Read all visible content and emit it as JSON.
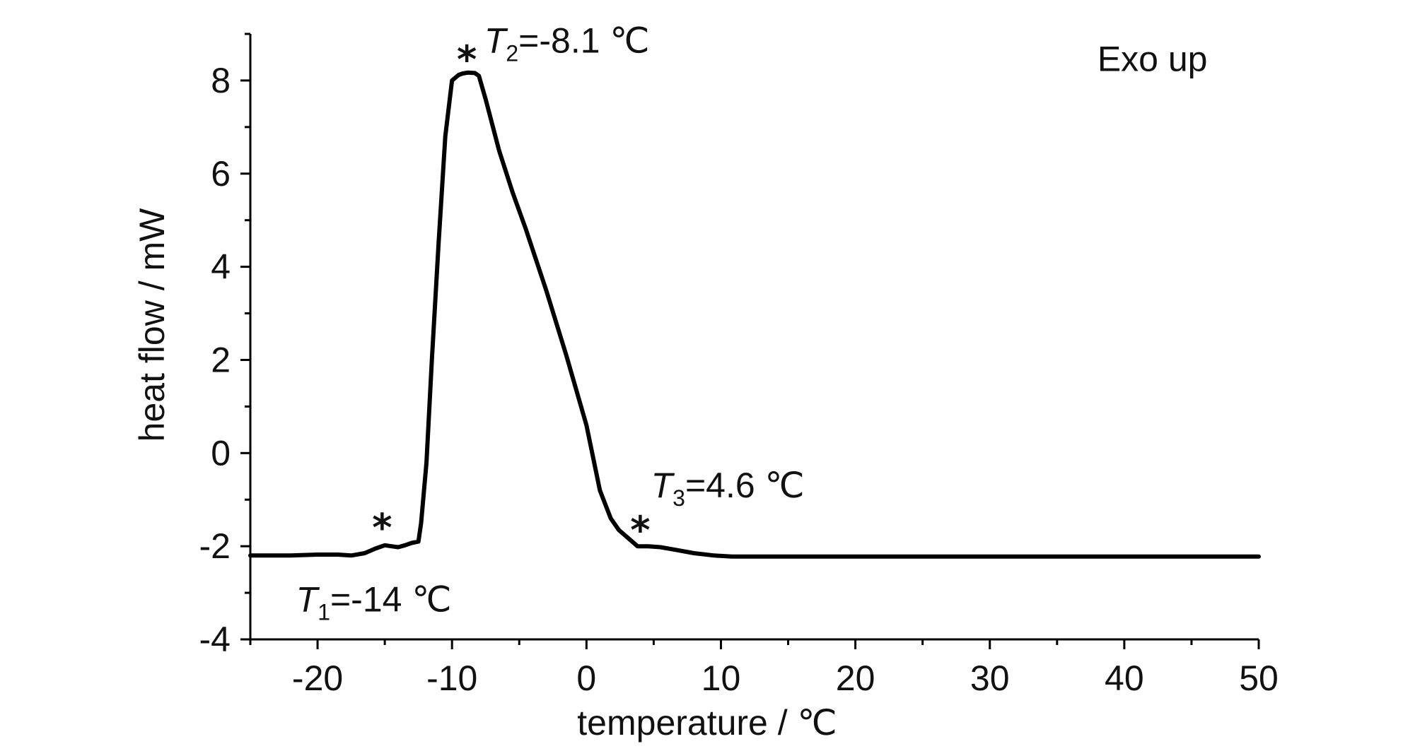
{
  "chart_data": {
    "type": "line",
    "xlabel": "temperature / ℃",
    "ylabel": "heat flow / mW",
    "xlim": [
      -25,
      50
    ],
    "ylim": [
      -4,
      9
    ],
    "x_ticks": [
      -20,
      -10,
      0,
      10,
      20,
      30,
      40,
      50
    ],
    "y_ticks": [
      -4,
      -2,
      0,
      2,
      4,
      6,
      8
    ],
    "x_tick_labels": [
      "-20",
      "-10",
      "0",
      "10",
      "20",
      "30",
      "40",
      "50"
    ],
    "y_tick_labels": [
      "-4",
      "-2",
      "0",
      "2",
      "4",
      "6",
      "8"
    ],
    "grid": false,
    "series": [
      {
        "x": [
          -25,
          -22,
          -20,
          -18.5,
          -17.5,
          -16.5,
          -15.7,
          -15.0,
          -14.5,
          -14.0,
          -13.5,
          -13.0,
          -12.5,
          -12.3,
          -11.9,
          -11.5,
          -11.0,
          -10.5,
          -10.0,
          -9.5,
          -9.2,
          -8.8,
          -8.3,
          -8.0,
          -7.5,
          -6.5,
          -5.5,
          -4.5,
          -3.0,
          -1.5,
          0,
          1.0,
          1.8,
          2.4,
          3.2,
          3.8,
          4.6,
          5.5,
          6.5,
          8.0,
          9.5,
          10.8,
          15,
          20,
          30,
          40,
          50
        ],
        "y": [
          -2.2,
          -2.2,
          -2.18,
          -2.18,
          -2.2,
          -2.15,
          -2.05,
          -1.98,
          -2.0,
          -2.02,
          -1.98,
          -1.93,
          -1.9,
          -1.5,
          -0.2,
          2.0,
          4.5,
          6.8,
          8.0,
          8.12,
          8.15,
          8.17,
          8.16,
          8.1,
          7.6,
          6.5,
          5.6,
          4.8,
          3.5,
          2.1,
          0.6,
          -0.8,
          -1.4,
          -1.65,
          -1.85,
          -2.0,
          -2.0,
          -2.02,
          -2.07,
          -2.15,
          -2.2,
          -2.22,
          -2.22,
          -2.22,
          -2.22,
          -2.22,
          -2.22
        ]
      }
    ],
    "annotations": [
      {
        "marker": "*",
        "x": -15.2,
        "y": -1.55,
        "label_main": "T",
        "label_sub": "1",
        "label_rest": "=-14 ℃",
        "label_x": -21.6,
        "label_y": -3.4
      },
      {
        "marker": "*",
        "x": -8.9,
        "y": 8.5,
        "label_main": "T",
        "label_sub": "2",
        "label_rest": "=-8.1 ℃",
        "label_x": -7.6,
        "label_y": 8.6
      },
      {
        "marker": "*",
        "x": 4.0,
        "y": -1.6,
        "label_main": "T",
        "label_sub": "3",
        "label_rest": "=4.6 ℃",
        "label_x": 4.8,
        "label_y": -0.95
      },
      {
        "marker": "",
        "x": 0,
        "y": 0,
        "label_main": "",
        "label_sub": "",
        "label_rest": "Exo up",
        "label_x": 38.0,
        "label_y": 8.2
      }
    ],
    "color": "#000000"
  }
}
